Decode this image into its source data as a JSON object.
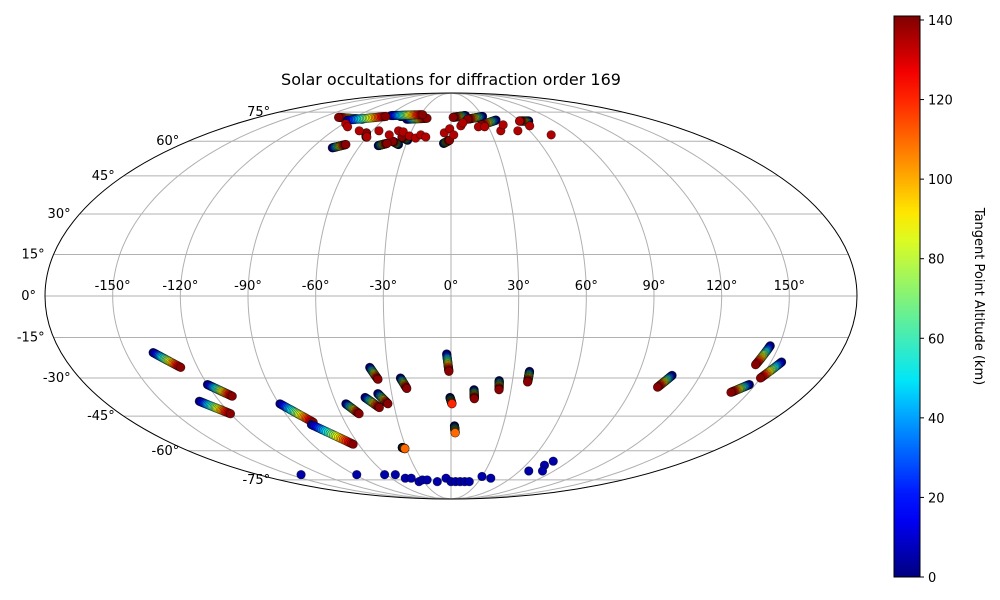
{
  "chart_data": {
    "type": "scatter",
    "projection": "mollweide",
    "title": "Solar occultations for diffraction order 169",
    "lon_ticks": [
      -150,
      -120,
      -90,
      -60,
      -30,
      0,
      30,
      60,
      90,
      120,
      150
    ],
    "lat_ticks": [
      -75,
      -60,
      -45,
      -30,
      -15,
      0,
      15,
      30,
      45,
      60,
      75
    ],
    "lon_tick_labels": [
      "-150°",
      "-120°",
      "-90°",
      "-60°",
      "-30°",
      "0°",
      "30°",
      "60°",
      "90°",
      "120°",
      "150°"
    ],
    "lat_tick_labels": [
      "-75°",
      "-60°",
      "-45°",
      "-30°",
      "-15°",
      "0°",
      "15°",
      "30°",
      "45°",
      "60°",
      "75°"
    ],
    "grid": true,
    "colorbar": {
      "label": "Tangent Point Altitude (km)",
      "min": 0,
      "max": 141,
      "colormap": "jet",
      "ticks": [
        0,
        20,
        40,
        60,
        80,
        100,
        120,
        140
      ],
      "tick_labels": [
        "0",
        "20",
        "40",
        "60",
        "80",
        "100",
        "120",
        "140"
      ]
    },
    "series": [
      {
        "name": "occultation",
        "lon": [
          -137.5,
          -128.0
        ],
        "lat": [
          -20.5,
          -26.0
        ],
        "alt": [
          0,
          140
        ]
      },
      {
        "name": "occultation",
        "lon": [
          -120.0,
          -111.5
        ],
        "lat": [
          -32.5,
          -37.0
        ],
        "alt": [
          0,
          140
        ]
      },
      {
        "name": "occultation",
        "lon": [
          -130.5,
          -120.0
        ],
        "lat": [
          -39.0,
          -44.0
        ],
        "alt": [
          0,
          140
        ]
      },
      {
        "name": "occultation",
        "lon": [
          -89.5,
          -78.0
        ],
        "lat": [
          -40.0,
          -47.5
        ],
        "alt": [
          0,
          140
        ]
      },
      {
        "name": "occultation",
        "lon": [
          -80.0,
          -63.5
        ],
        "lat": [
          -48.5,
          -57.0
        ],
        "alt": [
          0,
          140
        ]
      },
      {
        "name": "occultation",
        "lon": [
          -55.0,
          -50.0
        ],
        "lat": [
          -40.0,
          -44.0
        ],
        "alt": [
          0,
          140
        ]
      },
      {
        "name": "occultation",
        "lon": [
          -44.0,
          -38.0
        ],
        "lat": [
          -37.5,
          -41.5
        ],
        "alt": [
          0,
          140
        ]
      },
      {
        "name": "occultation",
        "lon": [
          -38.5,
          -35.5
        ],
        "lat": [
          -26.0,
          -30.5
        ],
        "alt": [
          0,
          140
        ]
      },
      {
        "name": "occultation",
        "lon": [
          -37.0,
          -33.0
        ],
        "lat": [
          -36.0,
          -40.0
        ],
        "alt": [
          0,
          140
        ]
      },
      {
        "name": "occultation",
        "lon": [
          -24.5,
          -22.0
        ],
        "lat": [
          -30.0,
          -34.0
        ],
        "alt": [
          0,
          140
        ]
      },
      {
        "name": "occultation",
        "lon": [
          -2.0,
          -1.0
        ],
        "lat": [
          -21.0,
          -27.5
        ],
        "alt": [
          0,
          140
        ]
      },
      {
        "name": "occultation",
        "lon": [
          -0.5,
          0.5
        ],
        "lat": [
          -37.5,
          -40.0
        ],
        "alt": [
          0,
          120
        ]
      },
      {
        "name": "occultation",
        "lon": [
          11.5,
          12.0
        ],
        "lat": [
          -34.5,
          -38.0
        ],
        "alt": [
          0,
          140
        ]
      },
      {
        "name": "occultation",
        "lon": [
          23.5,
          24.0
        ],
        "lat": [
          -31.0,
          -34.5
        ],
        "alt": [
          0,
          140
        ]
      },
      {
        "name": "occultation",
        "lon": [
          37.5,
          37.5
        ],
        "lat": [
          -27.5,
          -31.5
        ],
        "alt": [
          0,
          140
        ]
      },
      {
        "name": "occultation",
        "lon": [
          2.0,
          2.5
        ],
        "lat": [
          -49.0,
          -52.0
        ],
        "alt": [
          0,
          110
        ]
      },
      {
        "name": "occultation",
        "lon": [
          -32.5,
          -31.0
        ],
        "lat": [
          -58.5,
          -59.0
        ],
        "alt": [
          0,
          110
        ]
      },
      {
        "name": "occultation",
        "lon": [
          106.5,
          102.5
        ],
        "lat": [
          -29.0,
          -33.5
        ],
        "alt": [
          0,
          140
        ]
      },
      {
        "name": "occultation",
        "lon": [
          146.0,
          143.5
        ],
        "lat": [
          -18.0,
          -25.0
        ],
        "alt": [
          0,
          140
        ]
      },
      {
        "name": "occultation",
        "lon": [
          155.0,
          150.0
        ],
        "lat": [
          -24.0,
          -30.0
        ],
        "alt": [
          0,
          140
        ]
      },
      {
        "name": "occultation",
        "lon": [
          147.0,
          141.0
        ],
        "lat": [
          -32.5,
          -35.5
        ],
        "alt": [
          0,
          140
        ]
      },
      {
        "name": "occultation",
        "lon": [
          -60.5,
          -63.0
        ],
        "lat": [
          62.0,
          64.0
        ],
        "alt": [
          0,
          140
        ]
      },
      {
        "name": "occultation",
        "lon": [
          -77.0,
          -70.0
        ],
        "lat": [
          57.0,
          58.5
        ],
        "alt": [
          0,
          140
        ]
      },
      {
        "name": "occultation",
        "lon": [
          -35.0,
          -40.0
        ],
        "lat": [
          58.5,
          60.0
        ],
        "alt": [
          0,
          140
        ]
      },
      {
        "name": "occultation",
        "lon": [
          -48.0,
          -43.0
        ],
        "lat": [
          58.0,
          59.0
        ],
        "alt": [
          0,
          140
        ]
      },
      {
        "name": "occultation",
        "lon": [
          -30.0,
          -35.0
        ],
        "lat": [
          60.5,
          62.0
        ],
        "alt": [
          0,
          140
        ]
      },
      {
        "name": "occultation",
        "lon": [
          -5.0,
          -1.0
        ],
        "lat": [
          59.0,
          60.5
        ],
        "alt": [
          0,
          140
        ]
      },
      {
        "name": "occultation",
        "lon": [
          -80.0,
          -105.0
        ],
        "lat": [
          71.0,
          72.0
        ],
        "alt": [
          0,
          140
        ]
      },
      {
        "name": "occultation",
        "lon": [
          -48.0,
          -37.0
        ],
        "lat": [
          72.5,
          73.0
        ],
        "alt": [
          0,
          140
        ]
      },
      {
        "name": "occultation",
        "lon": [
          -40.0,
          -22.0
        ],
        "lat": [
          71.0,
          71.5
        ],
        "alt": [
          0,
          140
        ]
      },
      {
        "name": "occultation",
        "lon": [
          14.0,
          2.0
        ],
        "lat": [
          73.0,
          72.0
        ],
        "alt": [
          0,
          140
        ]
      },
      {
        "name": "occultation",
        "lon": [
          30.0,
          15.0
        ],
        "lat": [
          72.5,
          71.0
        ],
        "alt": [
          0,
          140
        ]
      },
      {
        "name": "occultation",
        "lon": [
          40.0,
          25.0
        ],
        "lat": [
          70.5,
          68.0
        ],
        "alt": [
          0,
          140
        ]
      },
      {
        "name": "occultation",
        "lon": [
          68.0,
          60.0
        ],
        "lat": [
          70.0,
          70.0
        ],
        "alt": [
          0,
          140
        ]
      },
      {
        "name": "occultation",
        "lon": [
          -58.0,
          -28.0
        ],
        "lat": [
          73.0,
          73.5
        ],
        "alt": [
          0,
          140
        ]
      },
      {
        "name": "occultation",
        "lon": [
          -92.0,
          -62.0
        ],
        "lat": [
          70.5,
          72.5
        ],
        "alt": [
          0,
          140
        ]
      }
    ],
    "clusters_high": [
      {
        "lon": [
          -88,
          -83,
          -70,
          -60,
          -55,
          -45,
          -40,
          -36,
          -30,
          -25,
          -22,
          -18,
          -5,
          -1,
          2,
          8,
          10,
          22,
          27,
          38,
          43,
          51,
          60,
          64,
          73
        ],
        "lat": [
          68.5,
          67,
          65,
          62,
          65,
          63,
          65,
          64.5,
          62.5,
          61.5,
          63,
          62,
          64,
          66,
          63,
          67.5,
          69,
          67,
          67,
          65,
          68,
          65,
          70,
          67.5,
          63
        ]
      }
    ],
    "clusters_low": [
      {
        "lon": [
          -140,
          -88,
          -62,
          -52,
          -46,
          -40,
          -35,
          -30,
          -25,
          -15,
          -5,
          0,
          5,
          10,
          15,
          20,
          30,
          40,
          68,
          75,
          78,
          80
        ],
        "lat": [
          -72,
          -72,
          -72,
          -72,
          -74,
          -74,
          -76,
          -75,
          -75,
          -76,
          -74,
          -76,
          -76,
          -76,
          -76,
          -76,
          -73,
          -74,
          -70,
          -67,
          -65,
          -70
        ]
      }
    ]
  }
}
